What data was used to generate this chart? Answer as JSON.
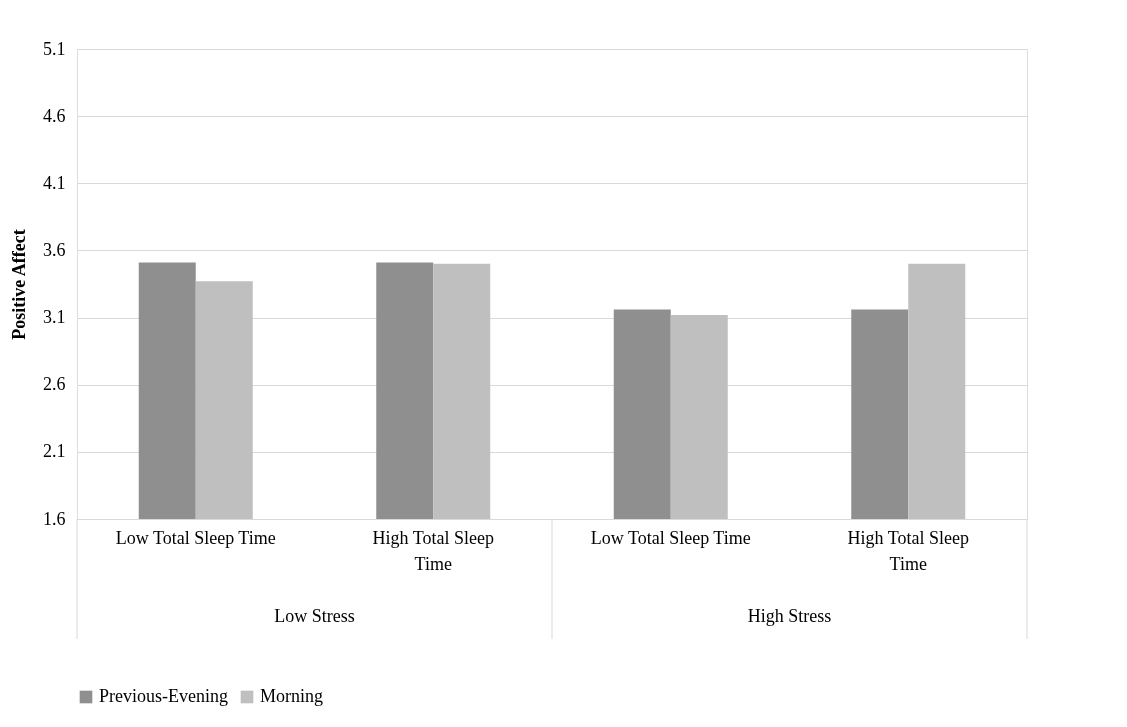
{
  "chart_data": {
    "type": "bar",
    "ylabel": "Positive Affect",
    "categories": [
      "Low Total Sleep Time",
      "High Total Sleep Time",
      "Low Total Sleep Time",
      "High Total Sleep Time"
    ],
    "annotations": [
      "Low Stress",
      "High Stress"
    ],
    "series": [
      {
        "name": "Previous-Evening",
        "color": "#8f8f8f",
        "values": [
          3.51,
          3.51,
          3.16,
          3.16
        ]
      },
      {
        "name": "Morning",
        "color": "#bfbfbf",
        "values": [
          3.37,
          3.5,
          3.12,
          3.5
        ]
      }
    ],
    "ylim": [
      1.6,
      5.1
    ],
    "yticks": [
      1.6,
      2.1,
      2.6,
      3.1,
      3.6,
      4.1,
      4.6,
      5.1
    ],
    "grid": "y",
    "legend": "bottom"
  }
}
